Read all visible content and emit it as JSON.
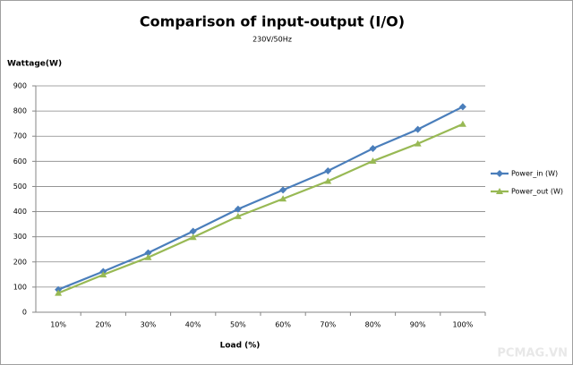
{
  "chart_data": {
    "type": "line",
    "title": "Comparison of input-output (I/O)",
    "subtitle": "230V/50Hz",
    "y_label": "Wattage(W)",
    "x_label": "Load (%)",
    "watermark": "PCMAG.VN",
    "categories": [
      "10%",
      "20%",
      "30%",
      "40%",
      "50%",
      "60%",
      "70%",
      "80%",
      "90%",
      "100%"
    ],
    "series": [
      {
        "name": "Power_in (W)",
        "color": "#4a7ebb",
        "marker": "diamond",
        "values": [
          90,
          162,
          236,
          322,
          410,
          486,
          562,
          651,
          727,
          817
        ]
      },
      {
        "name": "Power_out (W)",
        "color": "#98b954",
        "marker": "triangle",
        "values": [
          76,
          149,
          218,
          298,
          381,
          451,
          521,
          601,
          670,
          748
        ]
      }
    ],
    "ylim": [
      0,
      900
    ],
    "yticks": [
      0,
      100,
      200,
      300,
      400,
      500,
      600,
      700,
      800,
      900
    ],
    "grid": true,
    "legend": "right"
  }
}
